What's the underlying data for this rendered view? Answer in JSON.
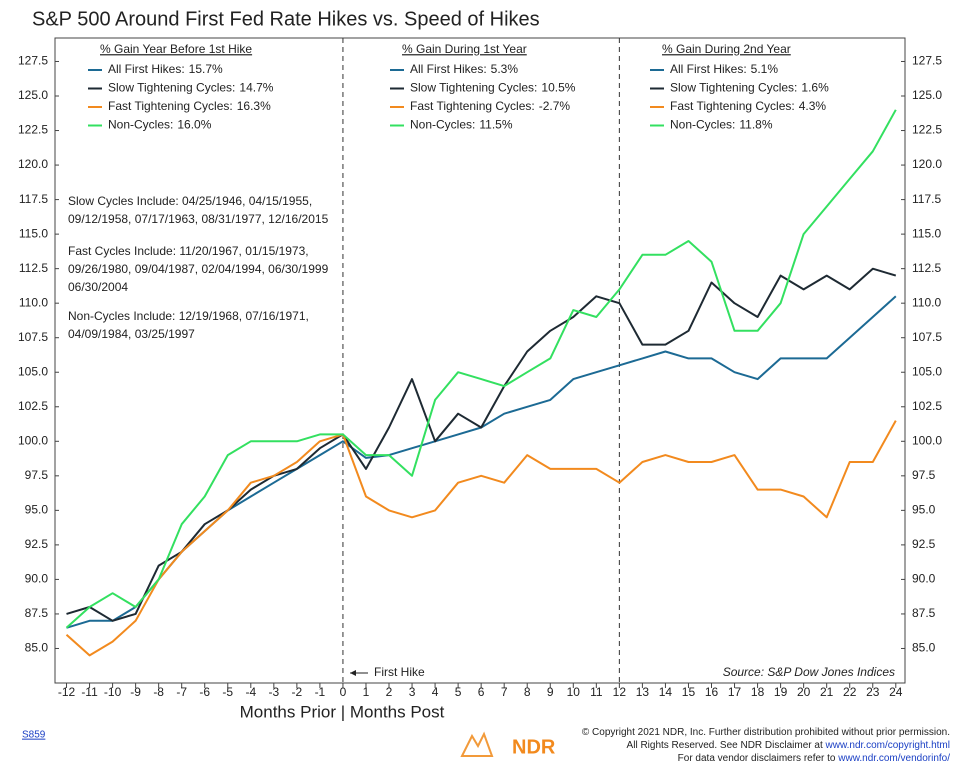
{
  "chart_data": {
    "type": "line",
    "title": "S&P 500 Around First Fed Rate Hikes vs. Speed of Hikes",
    "x_label": "Months Prior | Months Post",
    "x": [
      -12,
      -11,
      -10,
      -9,
      -8,
      -7,
      -6,
      -5,
      -4,
      -3,
      -2,
      -1,
      0,
      1,
      2,
      3,
      4,
      5,
      6,
      7,
      8,
      9,
      10,
      11,
      12,
      13,
      14,
      15,
      16,
      17,
      18,
      19,
      20,
      21,
      22,
      23,
      24
    ],
    "series": [
      {
        "name": "All First Hikes:",
        "color": "#1c6a94",
        "values": [
          86.5,
          87,
          87,
          88,
          90,
          92,
          93.5,
          95,
          96,
          97,
          98,
          99,
          100,
          98.8,
          99,
          99.5,
          100,
          100.5,
          101,
          102,
          102.5,
          103,
          104.5,
          105,
          105.5,
          106,
          106.5,
          106,
          106,
          105,
          104.5,
          106,
          106,
          106,
          107.5,
          109,
          110.5
        ]
      },
      {
        "name": "Slow Tightening Cycles:",
        "color": "#1e2a33",
        "values": [
          87.5,
          88,
          87,
          87.5,
          91,
          92,
          94,
          95,
          96.5,
          97.5,
          98,
          99.5,
          100.5,
          98,
          101,
          104.5,
          100,
          102,
          101,
          104,
          106.5,
          108,
          109,
          110.5,
          110,
          107,
          107,
          108,
          111.5,
          110,
          109,
          112,
          111,
          112,
          111,
          112.5,
          112
        ]
      },
      {
        "name": "Fast Tightening Cycles:",
        "color": "#f28a1e",
        "values": [
          86,
          84.5,
          85.5,
          87,
          90,
          92,
          93.5,
          95,
          97,
          97.5,
          98.5,
          100,
          100.5,
          96,
          95,
          94.5,
          95,
          97,
          97.5,
          97,
          99,
          98,
          98,
          98,
          97,
          98.5,
          99,
          98.5,
          98.5,
          99,
          96.5,
          96.5,
          96,
          94.5,
          98.5,
          98.5,
          101.5
        ]
      },
      {
        "name": "Non-Cycles:",
        "color": "#33e060",
        "values": [
          86.5,
          88,
          89,
          88,
          90,
          94,
          96,
          99,
          100,
          100,
          100,
          100.5,
          100.5,
          99,
          99,
          97.5,
          103,
          105,
          104.5,
          104,
          105,
          106,
          109.5,
          109,
          111,
          113.5,
          113.5,
          114.5,
          113,
          108,
          108,
          110,
          115,
          117,
          119,
          121,
          124
        ]
      }
    ],
    "legend_groups": [
      {
        "title": "% Gain Year Before 1st Hike",
        "values": [
          15.7,
          14.7,
          16.3,
          16.0
        ],
        "value_labels": [
          "15.7%",
          "14.7%",
          "16.3%",
          "16.0%"
        ]
      },
      {
        "title": "% Gain During 1st Year",
        "values": [
          5.3,
          10.5,
          -2.7,
          11.5
        ],
        "value_labels": [
          "5.3%",
          "10.5%",
          "-2.7%",
          "11.5%"
        ]
      },
      {
        "title": "% Gain During 2nd Year",
        "values": [
          5.1,
          1.6,
          4.3,
          11.8
        ],
        "value_labels": [
          "5.1%",
          "1.6%",
          "4.3%",
          "11.8%"
        ]
      }
    ],
    "notes": [
      [
        "Slow Cycles Include: 04/25/1946, 04/15/1955,",
        "09/12/1958, 07/17/1963, 08/31/1977, 12/16/2015"
      ],
      [
        "Fast Cycles Include: 11/20/1967, 01/15/1973,",
        "09/26/1980, 09/04/1987, 02/04/1994, 06/30/1999",
        "06/30/2004"
      ],
      [
        "Non-Cycles Include: 12/19/1968, 07/16/1971,",
        "04/09/1984, 03/25/1997"
      ]
    ],
    "annotation": "First Hike",
    "source": "Source:   S&P Dow Jones Indices",
    "reference_lines": [
      0,
      12
    ],
    "xlim": [
      -12.5,
      24.4
    ],
    "ylim": [
      82.5,
      129.2
    ],
    "xticks": [
      -12,
      -11,
      -10,
      -9,
      -8,
      -7,
      -6,
      -5,
      -4,
      -3,
      -2,
      -1,
      0,
      1,
      2,
      3,
      4,
      5,
      6,
      7,
      8,
      9,
      10,
      11,
      12,
      13,
      14,
      15,
      16,
      17,
      18,
      19,
      20,
      21,
      22,
      23,
      24
    ],
    "yticks": [
      {
        "value": 85,
        "label": "85.0"
      },
      {
        "value": 87.5,
        "label": "87.5"
      },
      {
        "value": 90,
        "label": "90.0"
      },
      {
        "value": 92.5,
        "label": "92.5"
      },
      {
        "value": 95,
        "label": "95.0"
      },
      {
        "value": 97.5,
        "label": "97.5"
      },
      {
        "value": 100,
        "label": "100.0"
      },
      {
        "value": 102.5,
        "label": "102.5"
      },
      {
        "value": 105,
        "label": "105.0"
      },
      {
        "value": 107.5,
        "label": "107.5"
      },
      {
        "value": 110,
        "label": "110.0"
      },
      {
        "value": 112.5,
        "label": "112.5"
      },
      {
        "value": 115,
        "label": "115.0"
      },
      {
        "value": 117.5,
        "label": "117.5"
      },
      {
        "value": 120,
        "label": "120.0"
      },
      {
        "value": 122.5,
        "label": "122.5"
      },
      {
        "value": 125,
        "label": "125.0"
      },
      {
        "value": 127.5,
        "label": "127.5"
      }
    ]
  },
  "footer": {
    "code": "S859",
    "logo": "NDR",
    "copyright": [
      [
        "© Copyright 2021 NDR, Inc. Further distribution prohibited without prior permission."
      ],
      [
        "All Rights Reserved. See NDR Disclaimer at ",
        "www.ndr.com/copyright.html"
      ],
      [
        "For data vendor disclaimers refer to ",
        "www.ndr.com/vendorinfo/"
      ]
    ]
  }
}
